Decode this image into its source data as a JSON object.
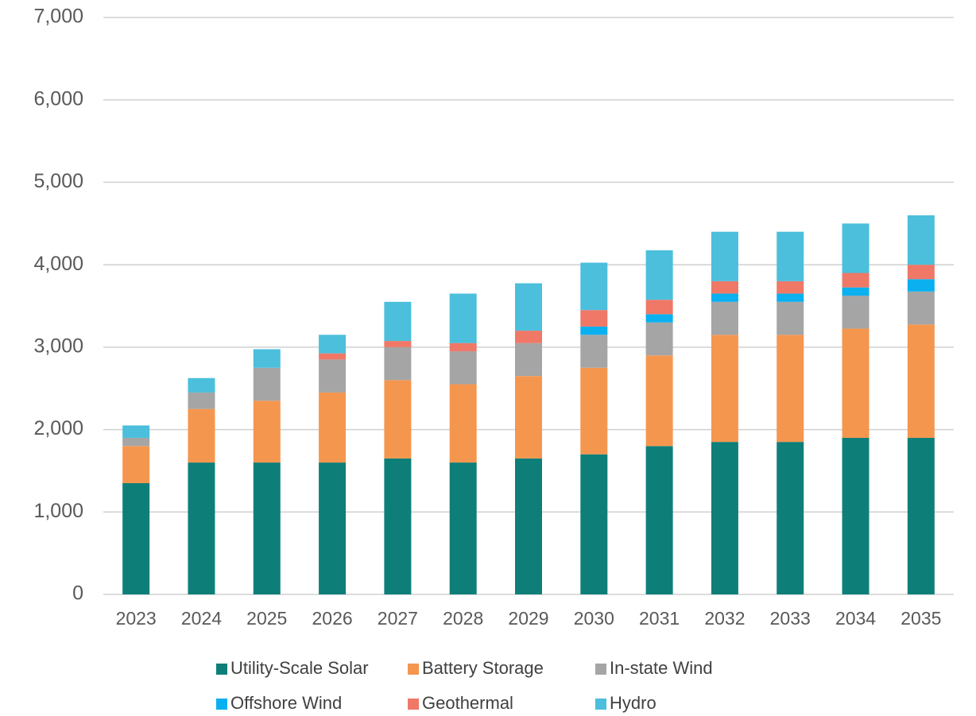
{
  "chart_data": {
    "type": "stacked_bar",
    "categories": [
      "2023",
      "2024",
      "2025",
      "2026",
      "2027",
      "2028",
      "2029",
      "2030",
      "2031",
      "2032",
      "2033",
      "2034",
      "2035"
    ],
    "series": [
      {
        "name": "Utility-Scale Solar",
        "color": "#0e7f78",
        "values": [
          1350,
          1600,
          1600,
          1600,
          1650,
          1600,
          1650,
          1700,
          1800,
          1850,
          1850,
          1900,
          1900
        ]
      },
      {
        "name": "Battery Storage",
        "color": "#f5964f",
        "values": [
          450,
          650,
          750,
          850,
          950,
          950,
          1000,
          1050,
          1100,
          1300,
          1300,
          1325,
          1375
        ]
      },
      {
        "name": "In-state Wind",
        "color": "#a5a5a5",
        "values": [
          100,
          200,
          400,
          400,
          400,
          400,
          400,
          400,
          400,
          400,
          400,
          400,
          400
        ]
      },
      {
        "name": "Offshore Wind",
        "color": "#0ab0f0",
        "values": [
          0,
          0,
          0,
          0,
          0,
          0,
          0,
          100,
          100,
          100,
          100,
          100,
          150
        ]
      },
      {
        "name": "Geothermal",
        "color": "#ef7867",
        "values": [
          0,
          0,
          0,
          75,
          75,
          100,
          150,
          200,
          175,
          150,
          150,
          175,
          175
        ]
      },
      {
        "name": "Hydro",
        "color": "#4bbfdc",
        "values": [
          150,
          175,
          225,
          225,
          475,
          600,
          575,
          575,
          600,
          600,
          600,
          600,
          600
        ]
      }
    ],
    "ylim": [
      0,
      7000
    ],
    "yticks": [
      0,
      {
        "value": 1000,
        "label": "1,000"
      },
      {
        "value": 2000,
        "label": "2,000"
      },
      {
        "value": 3000,
        "label": "3,000"
      },
      {
        "value": 4000,
        "label": "4,000"
      },
      {
        "value": 5000,
        "label": "5,000"
      },
      {
        "value": 6000,
        "label": "6,000"
      },
      {
        "value": 7000,
        "label": "7,000"
      }
    ],
    "grid": true,
    "legend": "bottom"
  }
}
